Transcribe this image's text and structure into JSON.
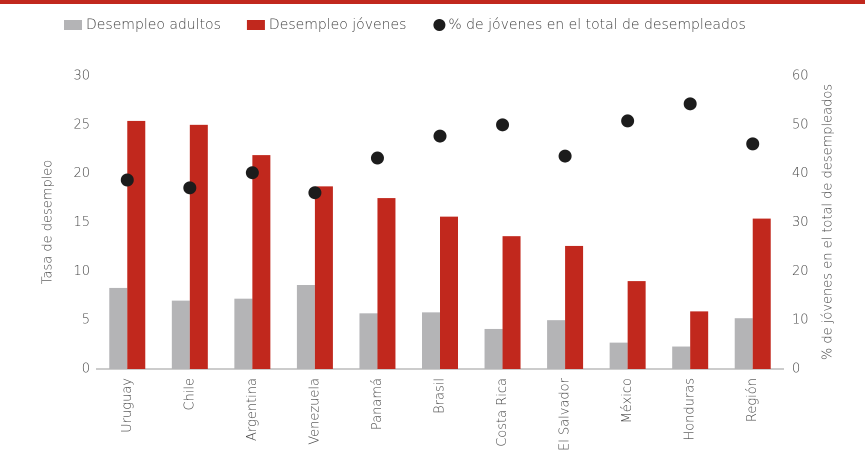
{
  "chart_data": {
    "type": "bar",
    "categories": [
      "Uruguay",
      "Chile",
      "Argentina",
      "Venezuela",
      "Panamá",
      "Brasil",
      "Costa Rica",
      "El Salvador",
      "México",
      "Honduras",
      "Región"
    ],
    "series": [
      {
        "name": "Desempleo adultos",
        "color": "#b4b4b6",
        "values": [
          8.3,
          7.0,
          7.2,
          8.6,
          5.7,
          5.8,
          4.1,
          5.0,
          2.7,
          2.3,
          5.2
        ]
      },
      {
        "name": "Desempleo jóvenes",
        "color": "#c1281d",
        "values": [
          25.4,
          25.0,
          21.9,
          18.7,
          17.5,
          15.6,
          13.6,
          12.6,
          9.0,
          5.9,
          15.4
        ]
      },
      {
        "name": "% de jóvenes en el total de desempleados",
        "color": "#1c1c1c",
        "type": "scatter",
        "axis": "y2",
        "values": [
          38.7,
          37.1,
          40.2,
          36.1,
          43.2,
          47.7,
          50.0,
          43.6,
          50.8,
          54.3,
          46.1
        ]
      }
    ],
    "ylabel": "Tasa de desempleo",
    "y2label": "% de jóvenes en el total de desempleados",
    "ylim": [
      0,
      30
    ],
    "yticks": [
      0,
      5,
      10,
      15,
      20,
      25,
      30
    ],
    "y2lim": [
      0,
      60
    ],
    "y2ticks": [
      0,
      10,
      20,
      30,
      40,
      50,
      60
    ],
    "grid": false
  }
}
